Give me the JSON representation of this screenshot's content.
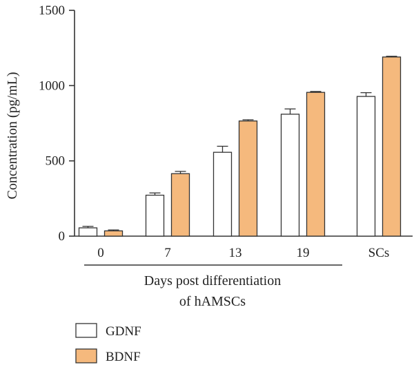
{
  "chart_data": {
    "type": "bar",
    "categories": [
      "0",
      "7",
      "13",
      "19",
      "SCs"
    ],
    "series": [
      {
        "name": "GDNF",
        "values": [
          55,
          272,
          557,
          810,
          928
        ],
        "errors": [
          10,
          15,
          40,
          35,
          25
        ],
        "color": "#ffffff"
      },
      {
        "name": "BDNF",
        "values": [
          35,
          415,
          765,
          955,
          1190
        ],
        "errors": [
          6,
          15,
          8,
          6,
          5
        ],
        "color": "#f5b97d"
      }
    ],
    "ylabel": "Concentration (pg/mL)",
    "xlabel_lines": [
      "Days post differentiation",
      "of hAMSCs"
    ],
    "ylim": [
      0,
      1500
    ],
    "yticks": [
      0,
      500,
      1000,
      1500
    ],
    "bracket_categories": [
      "0",
      "7",
      "13",
      "19"
    ],
    "legend_placement": "bottom-left",
    "grid": false,
    "stroke_color": "#333333"
  }
}
